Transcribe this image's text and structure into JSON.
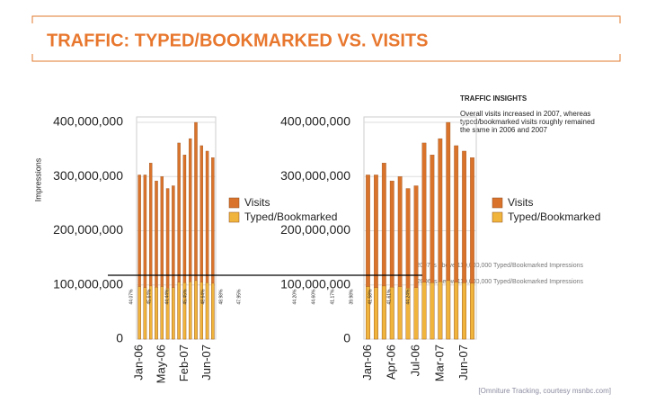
{
  "title": "TRAFFIC: TYPED/BOOKMARKED VS. VISITS",
  "insights": {
    "heading": "TRAFFIC INSIGHTS",
    "lines": [
      "Overall visits increased in 2007, whereas",
      "typed/bookmarked visits roughly remained",
      "the same in 2006 and 2007"
    ]
  },
  "annotations": [
    "2007 is above 110,000,000 Typed/Bookmarked Impressions",
    "2006 is below 110,000,000 Typed/Bookmarked Impressions"
  ],
  "source": "[Omniture Tracking, courtesy msnbc.com]",
  "chart_data": [
    {
      "type": "bar",
      "y_label": "Impressions",
      "categories": [
        "Jan-06",
        null,
        null,
        null,
        "May-06",
        null,
        null,
        null,
        "Feb-07",
        null,
        null,
        null,
        "Jun-07",
        null
      ],
      "series": [
        {
          "name": "Visits",
          "color": "#d9732c",
          "values": [
            303000000,
            303000000,
            325000000,
            292000000,
            300000000,
            278000000,
            283000000,
            362000000,
            340000000,
            370000000,
            400000000,
            357000000,
            347000000,
            335000000
          ]
        },
        {
          "name": "Typed/Bookmarked",
          "color": "#f0b43c",
          "values": [
            97000000,
            95000000,
            98000000,
            96000000,
            97000000,
            94000000,
            95000000,
            105000000,
            104000000,
            106000000,
            108000000,
            105000000,
            104000000,
            103000000
          ]
        }
      ],
      "percent_labels": [
        "44.07%",
        "45.64%",
        "44.44%",
        "45.45%",
        "48.64%",
        "48.98%",
        "47.95%"
      ],
      "ylim": [
        0,
        410000000
      ],
      "yticks": [
        0,
        {
          "value": 100000000,
          "label": "100,000,000"
        },
        {
          "value": 200000000,
          "label": "200,000,000"
        },
        {
          "value": 300000000,
          "label": "300,000,000"
        },
        {
          "value": 400000000,
          "label": "400,000,000"
        }
      ]
    },
    {
      "type": "bar",
      "categories": [
        "Jan-06",
        null,
        null,
        "Apr-06",
        null,
        null,
        "Jul-06",
        null,
        null,
        "Mar-07",
        null,
        null,
        "Jun-07",
        null
      ],
      "series": [
        {
          "name": "Visits",
          "color": "#d9732c",
          "values": [
            303000000,
            303000000,
            325000000,
            292000000,
            300000000,
            278000000,
            283000000,
            362000000,
            340000000,
            370000000,
            400000000,
            357000000,
            347000000,
            335000000
          ]
        },
        {
          "name": "Typed/Bookmarked",
          "color": "#f0b43c",
          "values": [
            97000000,
            95000000,
            98000000,
            96000000,
            97000000,
            94000000,
            95000000,
            105000000,
            104000000,
            106000000,
            108000000,
            105000000,
            104000000,
            103000000
          ]
        }
      ],
      "percent_labels": [
        "44.20%",
        "44.60%",
        "41.17%",
        "39.98%",
        "41.58%",
        "41.61%",
        "44.24%"
      ],
      "ylim": [
        0,
        410000000
      ],
      "yticks": [
        0,
        {
          "value": 100000000,
          "label": "100,000,000"
        },
        {
          "value": 200000000,
          "label": "200,000,000"
        },
        {
          "value": 300000000,
          "label": "300,000,000"
        },
        {
          "value": 400000000,
          "label": "400,000,000"
        }
      ]
    }
  ]
}
